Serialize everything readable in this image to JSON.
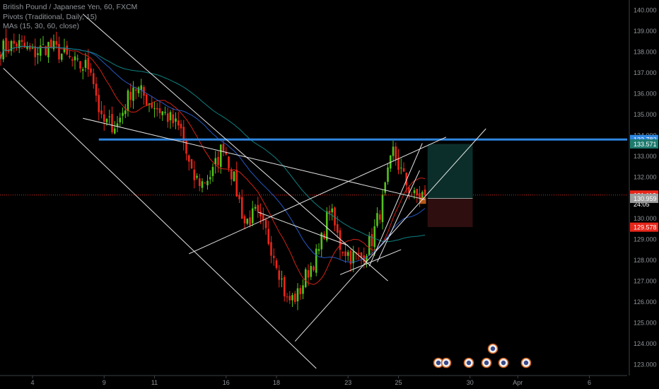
{
  "legend": {
    "symbol": "British Pound / Japanese Yen, 60, FXCM",
    "pivots": "Pivots (Traditional, Daily, 15)",
    "mas": "MAs (15, 30, 60, close)"
  },
  "colors": {
    "background": "#000000",
    "up_candle": "#53c21b",
    "down_candle": "#e8261a",
    "pivot_line": "#2e86e0",
    "price_line": "#e8261a",
    "trend_lines": "#e6e6e6",
    "target_zone": "#0b2e2a",
    "stop_zone": "#2e0e0e",
    "ma_fast": "#e8261a",
    "ma_mid": "#2a63d6",
    "ma_slow": "#0f8f8f",
    "axis_text": "#8f9499"
  },
  "chart_data": {
    "type": "candlestick",
    "x_ticks": [
      "4",
      "9",
      "11",
      "16",
      "18",
      "23",
      "25",
      "30",
      "Apr",
      "6"
    ],
    "y_ticks": [
      "140.000",
      "139.000",
      "138.000",
      "137.000",
      "136.000",
      "135.000",
      "134.000",
      "133.000",
      "132.000",
      "131.000",
      "130.000",
      "129.000",
      "128.000",
      "127.000",
      "126.000",
      "125.000",
      "124.000",
      "123.000"
    ],
    "ylim": [
      122.8,
      140.25
    ],
    "price_anchors": [
      {
        "bar": 0,
        "price": 138.1
      },
      {
        "bar": 6,
        "price": 138.4
      },
      {
        "bar": 12,
        "price": 137.9
      },
      {
        "bar": 18,
        "price": 138.3
      },
      {
        "bar": 24,
        "price": 137.8
      },
      {
        "bar": 29,
        "price": 137.3
      },
      {
        "bar": 34,
        "price": 137.3
      },
      {
        "bar": 38,
        "price": 134.6
      },
      {
        "bar": 44,
        "price": 134.5
      },
      {
        "bar": 50,
        "price": 136.4
      },
      {
        "bar": 56,
        "price": 135.6
      },
      {
        "bar": 62,
        "price": 135.0
      },
      {
        "bar": 68,
        "price": 134.2
      },
      {
        "bar": 72,
        "price": 132.0
      },
      {
        "bar": 76,
        "price": 131.7
      },
      {
        "bar": 80,
        "price": 132.2
      },
      {
        "bar": 84,
        "price": 133.6
      },
      {
        "bar": 88,
        "price": 131.8
      },
      {
        "bar": 92,
        "price": 129.8
      },
      {
        "bar": 96,
        "price": 130.2
      },
      {
        "bar": 100,
        "price": 129.3
      },
      {
        "bar": 104,
        "price": 128.0
      },
      {
        "bar": 108,
        "price": 126.0
      },
      {
        "bar": 112,
        "price": 126.3
      },
      {
        "bar": 116,
        "price": 127.5
      },
      {
        "bar": 120,
        "price": 128.4
      },
      {
        "bar": 124,
        "price": 130.5
      },
      {
        "bar": 128,
        "price": 128.7
      },
      {
        "bar": 132,
        "price": 128.2
      },
      {
        "bar": 136,
        "price": 128.1
      },
      {
        "bar": 140,
        "price": 129.0
      },
      {
        "bar": 144,
        "price": 130.8
      },
      {
        "bar": 148,
        "price": 133.2
      },
      {
        "bar": 152,
        "price": 131.9
      },
      {
        "bar": 156,
        "price": 131.0
      },
      {
        "bar": 160,
        "price": 131.2
      }
    ],
    "bar_count": 161,
    "pivot_level": 133.782,
    "price_labels": [
      {
        "value": 133.782,
        "text": "133.782",
        "bg": "#2e86e0"
      },
      {
        "value": 133.571,
        "text": "133.571",
        "bg": "#1d7a6e"
      },
      {
        "value": 131.118,
        "text": "131.118",
        "bg": "#e8261a"
      },
      {
        "value": 130.68,
        "text": "24:05",
        "bg": "#000000"
      },
      {
        "value": 130.959,
        "text": "130.959",
        "bg": "#9e9e9e"
      },
      {
        "value": 129.578,
        "text": "129.578",
        "bg": "#e8261a"
      }
    ],
    "current_price": 131.118,
    "position": {
      "entry": 130.959,
      "target": 133.571,
      "stop": 129.578,
      "start_bar": 161,
      "end_bar": 178
    },
    "trend_lines": [
      {
        "from": [
          1,
          137.2
        ],
        "to": [
          119,
          122.8
        ]
      },
      {
        "from": [
          31,
          139.8
        ],
        "to": [
          146,
          127.0
        ]
      },
      {
        "from": [
          31,
          134.8
        ],
        "to": [
          160,
          130.9
        ]
      },
      {
        "from": [
          71,
          128.3
        ],
        "to": [
          168,
          133.9
        ]
      },
      {
        "from": [
          111,
          124.1
        ],
        "to": [
          183,
          134.3
        ]
      },
      {
        "from": [
          97,
          130.3
        ],
        "to": [
          131,
          128.7
        ]
      },
      {
        "from": [
          139,
          127.7
        ],
        "to": [
          159,
          133.6
        ]
      },
      {
        "from": [
          142,
          127.9
        ],
        "to": [
          158,
          132.3
        ]
      },
      {
        "from": [
          128,
          127.3
        ],
        "to": [
          151,
          128.5
        ]
      }
    ],
    "ma_periods": [
      15,
      30,
      60
    ]
  }
}
